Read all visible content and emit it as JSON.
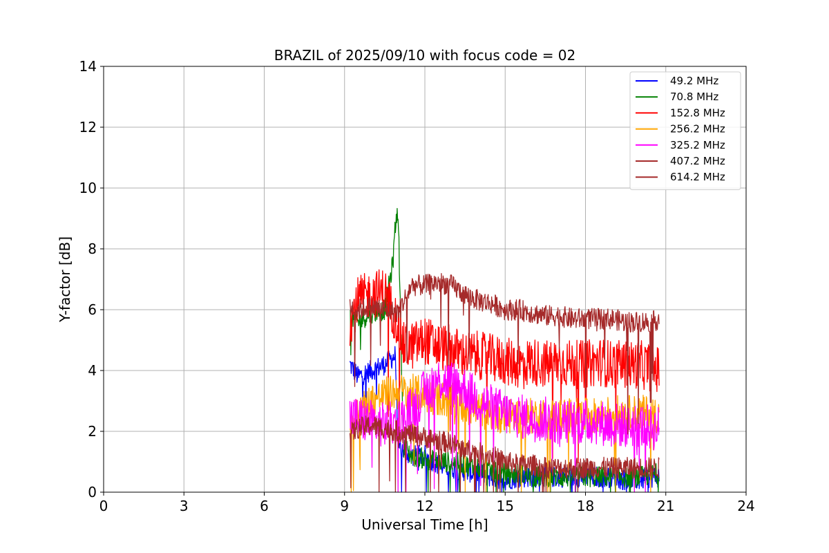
{
  "chart_data": {
    "type": "line",
    "title": "BRAZIL of 2025/09/10 with focus code = 02",
    "xlabel": "Universal Time [h]",
    "ylabel": "Y-factor [dB]",
    "xlim": [
      0,
      24
    ],
    "ylim": [
      0,
      14
    ],
    "xticks": [
      0,
      3,
      6,
      9,
      12,
      15,
      18,
      21,
      24
    ],
    "yticks": [
      0,
      2,
      4,
      6,
      8,
      10,
      12,
      14
    ],
    "grid": true,
    "legend_position": "top-right",
    "series": [
      {
        "name": " 49.2 MHz",
        "color": "#0000ff",
        "x": [
          9.2,
          9.5,
          10.0,
          10.5,
          10.9,
          11.0,
          11.5,
          12.0,
          12.5,
          13.0,
          13.5,
          14.0,
          14.5,
          15.0,
          15.5,
          16.0,
          16.5,
          17.0,
          17.5,
          18.0,
          18.5,
          19.0,
          19.5,
          20.0,
          20.5,
          20.75
        ],
        "y": [
          4.2,
          3.8,
          4.0,
          4.2,
          4.5,
          1.5,
          1.2,
          1.2,
          0.9,
          0.8,
          0.7,
          0.6,
          0.5,
          0.4,
          0.5,
          0.5,
          0.5,
          0.5,
          0.5,
          0.5,
          0.5,
          0.5,
          0.4,
          0.4,
          0.5,
          0.5
        ]
      },
      {
        "name": " 70.8 MHz",
        "color": "#008000",
        "x": [
          9.2,
          9.5,
          10.0,
          10.5,
          10.8,
          10.9,
          11.0,
          11.2,
          11.5,
          12.0,
          12.5,
          13.0,
          13.5,
          14.0,
          14.5,
          15.0,
          15.5,
          16.0,
          16.5,
          17.0,
          17.5,
          18.0,
          18.5,
          19.0,
          19.5,
          20.0,
          20.5,
          20.75
        ],
        "y": [
          5.8,
          5.6,
          5.9,
          6.0,
          7.5,
          8.8,
          9.3,
          1.5,
          1.2,
          1.1,
          1.0,
          1.0,
          0.9,
          0.8,
          0.7,
          0.6,
          0.6,
          0.5,
          0.5,
          0.5,
          0.5,
          0.5,
          0.5,
          0.5,
          0.5,
          0.5,
          0.6,
          0.6
        ]
      },
      {
        "name": " 152.8 MHz",
        "color": "#ff0000",
        "x": [
          9.2,
          9.5,
          10.0,
          10.5,
          11.0,
          11.2,
          11.5,
          12.0,
          12.5,
          13.0,
          13.5,
          14.0,
          14.5,
          15.0,
          15.5,
          16.0,
          16.5,
          17.0,
          17.5,
          18.0,
          18.5,
          19.0,
          19.5,
          20.0,
          20.5,
          20.75
        ],
        "y": [
          5.6,
          6.3,
          6.5,
          6.6,
          5.5,
          4.8,
          4.8,
          5.0,
          4.8,
          4.7,
          4.5,
          4.5,
          4.4,
          4.3,
          4.2,
          4.3,
          4.2,
          4.3,
          4.2,
          4.2,
          4.3,
          4.2,
          4.2,
          4.2,
          4.1,
          4.0
        ]
      },
      {
        "name": " 256.2 MHz",
        "color": "#ffa500",
        "x": [
          9.2,
          9.5,
          10.0,
          10.5,
          11.0,
          11.5,
          12.0,
          12.5,
          13.0,
          13.5,
          14.0,
          14.5,
          15.0,
          15.5,
          16.0,
          16.5,
          17.0,
          17.5,
          18.0,
          18.5,
          19.0,
          19.5,
          20.0,
          20.5,
          20.75
        ],
        "y": [
          2.2,
          2.6,
          3.0,
          3.2,
          3.3,
          3.3,
          3.2,
          3.1,
          3.0,
          2.8,
          2.7,
          2.6,
          2.5,
          2.5,
          2.5,
          2.5,
          2.5,
          2.5,
          2.5,
          2.5,
          2.6,
          2.6,
          2.6,
          2.6,
          2.5
        ]
      },
      {
        "name": " 325.2 MHz",
        "color": "#ff00ff",
        "x": [
          9.2,
          9.5,
          10.0,
          10.5,
          11.0,
          11.5,
          12.0,
          12.5,
          13.0,
          13.5,
          14.0,
          14.5,
          15.0,
          15.5,
          16.0,
          16.5,
          17.0,
          17.5,
          18.0,
          18.5,
          19.0,
          19.5,
          20.0,
          20.5,
          20.75
        ],
        "y": [
          2.5,
          2.4,
          2.3,
          2.2,
          2.3,
          2.7,
          3.3,
          3.7,
          3.6,
          3.4,
          3.0,
          2.8,
          2.6,
          2.5,
          2.4,
          2.4,
          2.3,
          2.3,
          2.3,
          2.3,
          2.2,
          2.2,
          2.2,
          2.1,
          2.1
        ]
      },
      {
        "name": " 407.2 MHz",
        "color": "#a52a2a",
        "x": [
          9.2,
          9.5,
          10.0,
          10.5,
          11.0,
          11.5,
          12.0,
          12.5,
          13.0,
          13.5,
          14.0,
          14.5,
          15.0,
          15.5,
          16.0,
          16.5,
          17.0,
          17.5,
          18.0,
          18.5,
          19.0,
          19.5,
          20.0,
          20.5,
          20.75
        ],
        "y": [
          6.1,
          6.0,
          6.1,
          6.0,
          5.9,
          6.8,
          6.8,
          6.9,
          6.8,
          6.5,
          6.3,
          6.2,
          6.0,
          6.0,
          5.9,
          5.8,
          5.8,
          5.7,
          5.7,
          5.7,
          5.7,
          5.6,
          5.6,
          5.6,
          5.7
        ]
      },
      {
        "name": " 614.2 MHz",
        "color": "#a52a2a",
        "x": [
          9.2,
          9.5,
          10.0,
          10.5,
          11.0,
          11.5,
          12.0,
          12.5,
          13.0,
          13.5,
          14.0,
          14.5,
          15.0,
          15.5,
          16.0,
          16.5,
          17.0,
          17.5,
          18.0,
          18.5,
          19.0,
          19.5,
          20.0,
          20.5,
          20.75
        ],
        "y": [
          1.9,
          2.1,
          2.2,
          2.1,
          2.0,
          1.9,
          1.8,
          1.7,
          1.6,
          1.4,
          1.3,
          1.2,
          1.0,
          0.9,
          0.9,
          0.8,
          0.8,
          0.8,
          0.8,
          0.8,
          0.8,
          0.8,
          0.8,
          0.8,
          0.8
        ]
      }
    ]
  }
}
